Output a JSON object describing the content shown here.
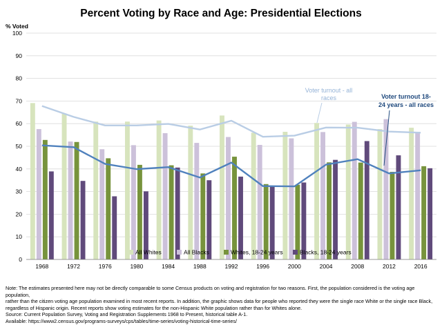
{
  "chart_data": {
    "type": "bar",
    "title": "Percent Voting by Race and Age:  Presidential Elections",
    "ylabel": "% Voted",
    "xlabel": "",
    "ylim": [
      0,
      100
    ],
    "yticks": [
      0,
      10,
      20,
      30,
      40,
      50,
      60,
      70,
      80,
      90,
      100
    ],
    "grid": true,
    "legend_position": "bottom-inside",
    "categories": [
      "1968",
      "1972",
      "1976",
      "1980",
      "1984",
      "1988",
      "1992",
      "1996",
      "2000",
      "2004",
      "2008",
      "2012",
      "2016"
    ],
    "series": [
      {
        "name": "All Whites",
        "color": "#d7e4bd",
        "values": [
          69.1,
          64.5,
          60.9,
          60.9,
          61.4,
          59.1,
          63.6,
          56.0,
          56.4,
          60.3,
          59.6,
          57.6,
          58.2
        ]
      },
      {
        "name": "All Blacks",
        "color": "#ccc1da",
        "values": [
          57.6,
          52.1,
          48.7,
          50.5,
          55.8,
          51.5,
          54.1,
          50.6,
          53.5,
          56.3,
          60.8,
          62.0,
          55.9
        ]
      },
      {
        "name": "Whites, 18-24 years",
        "color": "#77933c",
        "values": [
          52.8,
          51.9,
          44.7,
          41.8,
          41.6,
          38.0,
          45.4,
          33.3,
          33.0,
          42.9,
          42.8,
          38.7,
          41.2
        ]
      },
      {
        "name": "Blacks, 18-24 years",
        "color": "#604a7b",
        "values": [
          38.9,
          34.7,
          27.9,
          30.1,
          40.6,
          35.0,
          36.6,
          32.4,
          34.0,
          44.0,
          52.3,
          46.0,
          40.3
        ]
      }
    ],
    "lines": [
      {
        "name": "Voter turnout - all races",
        "color": "#b9cde5",
        "values": [
          67.8,
          63.0,
          59.2,
          59.2,
          59.9,
          57.4,
          61.3,
          54.2,
          54.7,
          58.3,
          58.2,
          56.5,
          56.0
        ]
      },
      {
        "name": "Voter turnout 18-24 years - all races",
        "color": "#4f81bd",
        "values": [
          50.4,
          49.6,
          42.2,
          39.9,
          40.8,
          36.2,
          42.8,
          32.4,
          32.3,
          41.9,
          44.3,
          38.0,
          39.4
        ]
      }
    ],
    "annotations": [
      {
        "lines": [
          "Voter turnout - all",
          "races"
        ],
        "color": "#95b3d7"
      },
      {
        "lines": [
          "Voter turnout 18-",
          "24 years - all races"
        ],
        "color": "#1f497d"
      }
    ]
  },
  "notes": {
    "line1": "Note: The estimates presented here may not be directly comparable to some Census products on voting and registration for two reasons. First, the population considered is the voting age population,",
    "line2": "rather than the citizen voting age population examined in most recent reports. In addition, the graphic shows data for people who reported they were the single race White or the single race Black,",
    "line3": "regardless of Hispanic origin. Recent reports show voting estimates for the non-Hispanic White population rather than for Whites alone.",
    "line4": "Source: Current Population Survey, Voting and Registration Supplements 1968 to Present, historical table A-1.",
    "line5": "Available: https://www2.census.gov/programs-surveys/cps/tables/time-series/voting-historical-time-series/"
  }
}
